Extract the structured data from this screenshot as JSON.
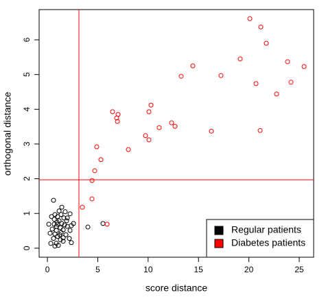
{
  "chart_data": {
    "type": "scatter",
    "xlabel": "score distance",
    "ylabel": "orthogonal distance",
    "xlim": [
      -0.82,
      26.43
    ],
    "ylim": [
      -0.26,
      6.87
    ],
    "xticks": [
      0,
      5,
      10,
      15,
      20,
      25
    ],
    "yticks": [
      0,
      1,
      2,
      3,
      4,
      5,
      6
    ],
    "vline": 3.13,
    "hline": 1.97,
    "line_color": "#ff0000",
    "legend": "bottom-right",
    "series": [
      {
        "name": "Regular patients",
        "color": "#000000",
        "x": [
          0.61,
          1.43,
          1.16,
          1.77,
          0.75,
          0.41,
          1.02,
          1.36,
          2.25,
          1.63,
          0.68,
          1.16,
          1.91,
          0.14,
          0.68,
          1.02,
          1.43,
          1.7,
          0.89,
          1.29,
          1.98,
          2.38,
          2.59,
          0.48,
          0.89,
          1.57,
          2.25,
          0.27,
          0.75,
          1.36,
          1.84,
          1.02,
          1.57,
          0.61,
          1.29,
          2.18,
          2.38,
          0.34,
          0.89,
          0.75,
          1.09,
          1.57,
          1.98,
          0.96,
          1.23,
          4.02,
          5.52
        ],
        "y": [
          1.38,
          1.18,
          1.07,
          1.05,
          0.97,
          0.91,
          0.91,
          0.97,
          0.99,
          0.87,
          0.83,
          0.79,
          0.79,
          0.69,
          0.69,
          0.69,
          0.71,
          0.67,
          0.63,
          0.59,
          0.63,
          0.65,
          0.71,
          0.55,
          0.51,
          0.53,
          0.51,
          0.43,
          0.41,
          0.45,
          0.39,
          0.34,
          0.3,
          0.28,
          0.24,
          0.28,
          0.16,
          0.14,
          0.14,
          0.06,
          0.08,
          0.2,
          0.87,
          0.75,
          0.39,
          0.61,
          0.71
        ]
      },
      {
        "name": "Diabetes patients",
        "color": "#ff0000",
        "x": [
          3.47,
          4.43,
          4.43,
          4.7,
          4.9,
          5.31,
          5.93,
          6.47,
          6.88,
          7.02,
          6.95,
          8.04,
          9.74,
          10.08,
          10.08,
          10.29,
          11.1,
          12.33,
          12.67,
          13.28,
          14.44,
          16.28,
          17.23,
          19.14,
          20.1,
          20.71,
          21.19,
          21.73,
          21.12,
          22.75,
          23.84,
          24.18,
          25.48
        ],
        "y": [
          1.18,
          1.42,
          1.95,
          2.23,
          2.92,
          2.55,
          0.69,
          3.93,
          3.75,
          3.85,
          3.65,
          2.84,
          3.24,
          3.12,
          3.93,
          4.12,
          3.47,
          3.61,
          3.51,
          4.95,
          5.25,
          3.37,
          4.97,
          5.45,
          6.61,
          4.74,
          6.37,
          5.9,
          3.39,
          4.44,
          5.37,
          4.78,
          5.23
        ]
      }
    ]
  }
}
